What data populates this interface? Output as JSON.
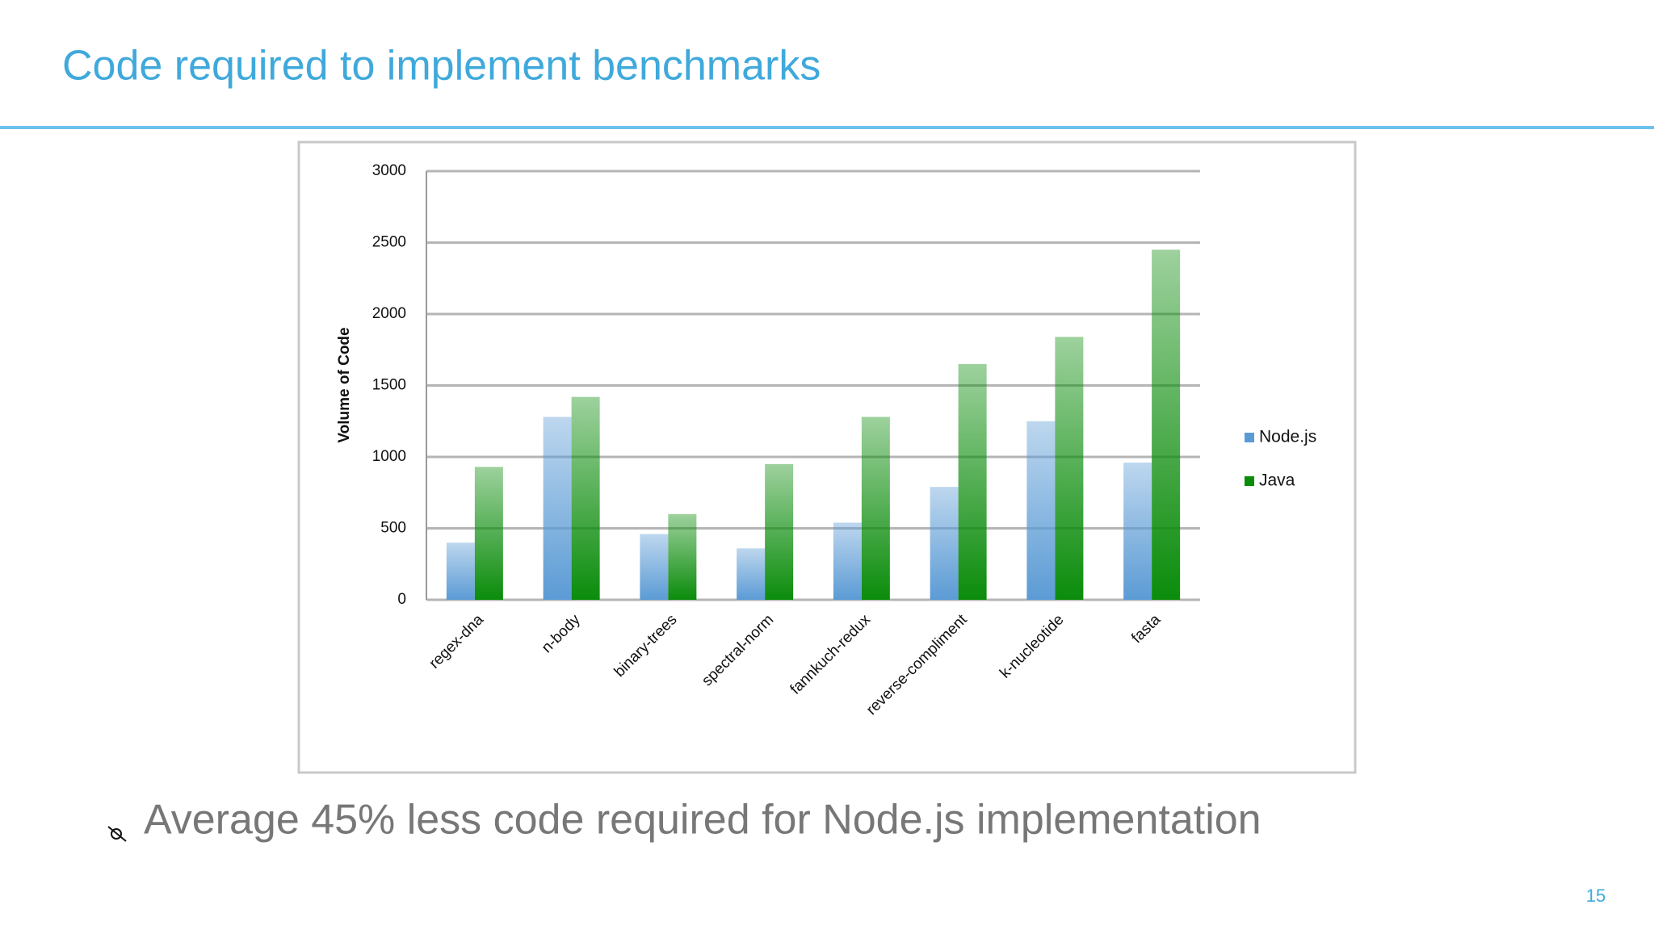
{
  "slide_title": "Code required to implement benchmarks",
  "bullet": "Average 45% less code required for Node.js implementation",
  "page_number": "15",
  "chart_data": {
    "type": "bar",
    "y_label": "Volume of Code",
    "categories": [
      "regex-dna",
      "n-body",
      "binary-trees",
      "spectral-norm",
      "fannkuch-redux",
      "reverse-compliment",
      "k-nucleotide",
      "fasta"
    ],
    "series": [
      {
        "name": "Node.js",
        "color": "#5b9bd5",
        "values": [
          400,
          1280,
          460,
          360,
          540,
          790,
          1250,
          960
        ]
      },
      {
        "name": "Java",
        "color": "#0b8c0b",
        "values": [
          930,
          1420,
          600,
          950,
          1280,
          1650,
          1840,
          2450
        ]
      }
    ],
    "ylim": [
      0,
      3000
    ],
    "yticks": [
      0,
      500,
      1000,
      1500,
      2000,
      2500,
      3000
    ],
    "grid": true,
    "legend": "right"
  }
}
